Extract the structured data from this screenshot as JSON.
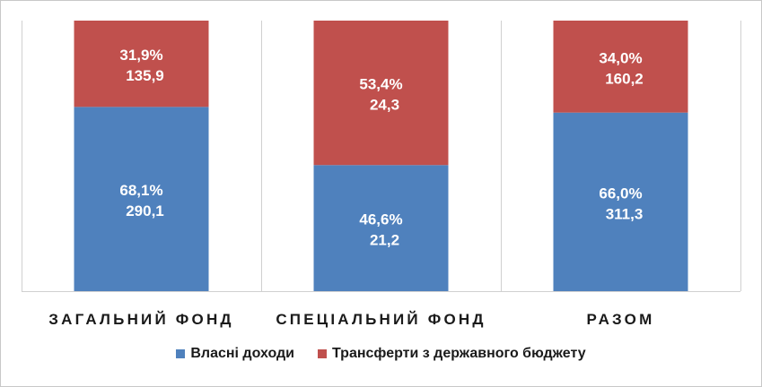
{
  "chart_data": {
    "type": "bar",
    "stacked": true,
    "normalized": true,
    "categories": [
      "ЗАГАЛЬНИЙ ФОНД",
      "СПЕЦІАЛЬНИЙ ФОНД",
      "РАЗОМ"
    ],
    "series": [
      {
        "name": "Власні доходи",
        "color": "#4f81bd",
        "percent": [
          68.1,
          46.6,
          66.0
        ],
        "values": [
          290.1,
          21.2,
          311.3
        ],
        "percent_labels": [
          "68,1%",
          "46,6%",
          "66,0%"
        ],
        "value_labels": [
          "290,1",
          "21,2",
          "311,3"
        ]
      },
      {
        "name": "Трансферти з державного бюджету",
        "color": "#c0504d",
        "percent": [
          31.9,
          53.4,
          34.0
        ],
        "values": [
          135.9,
          24.3,
          160.2
        ],
        "percent_labels": [
          "31,9%",
          "53,4%",
          "34,0%"
        ],
        "value_labels": [
          "135,9",
          "24,3",
          "160,2"
        ]
      }
    ],
    "ylim": [
      0,
      100
    ],
    "grid": false,
    "legend_position": "bottom"
  }
}
